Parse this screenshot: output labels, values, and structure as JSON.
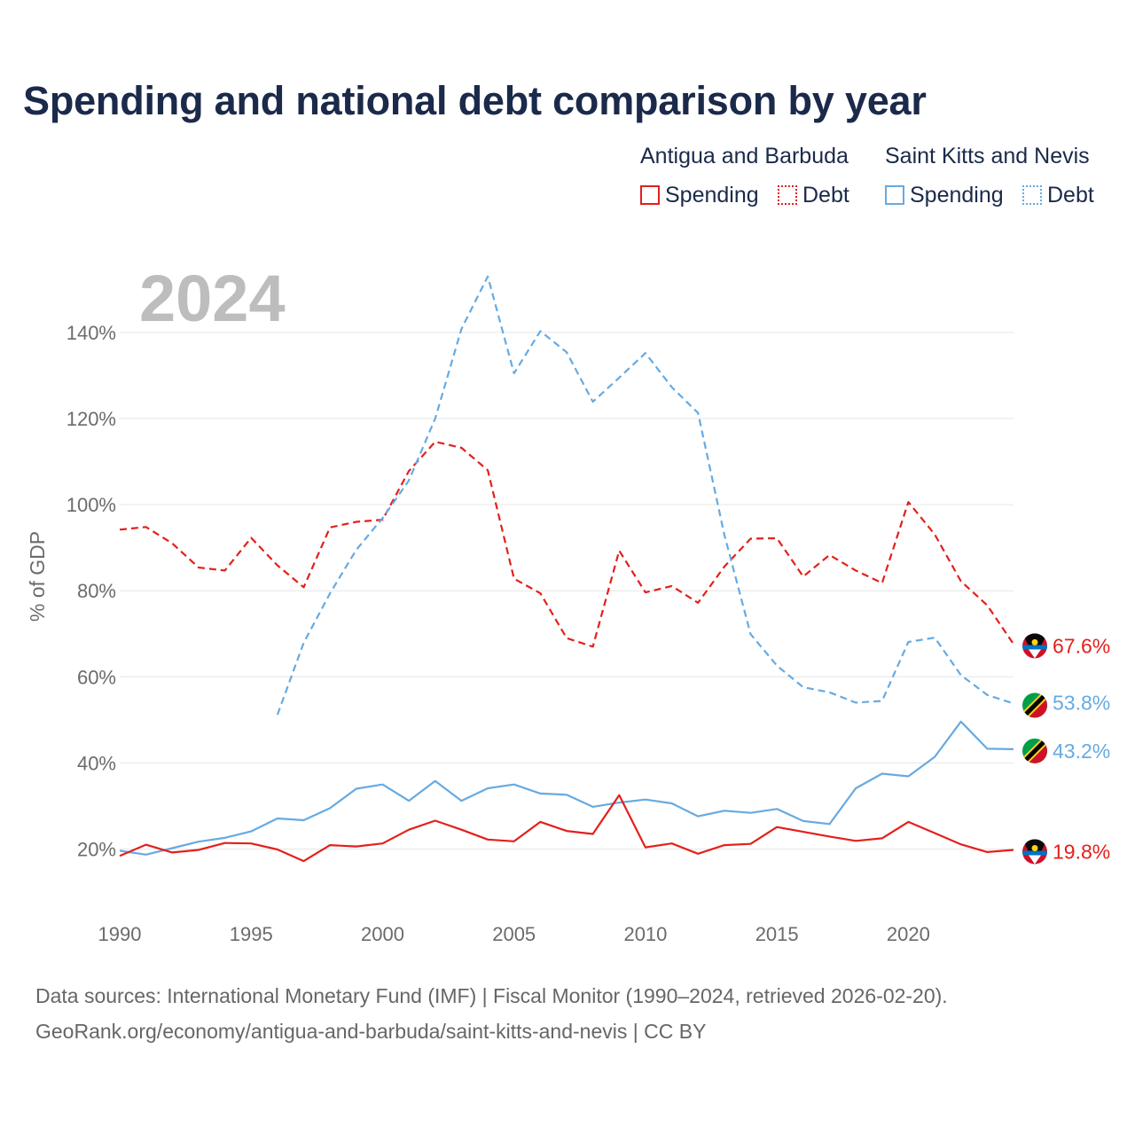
{
  "title": "Spending and national debt comparison by year",
  "legend": {
    "groups": [
      {
        "country": "Antigua and Barbuda",
        "spending_label": "Spending",
        "debt_label": "Debt",
        "color": "#e3201b"
      },
      {
        "country": "Saint Kitts and Nevis",
        "spending_label": "Spending",
        "debt_label": "Debt",
        "color": "#66aae2"
      }
    ]
  },
  "source": {
    "line1": "Data sources: International Monetary Fund (IMF) | Fiscal Monitor (1990–2024, retrieved 2026-02-20).",
    "line2": "GeoRank.org/economy/antigua-and-barbuda/saint-kitts-and-nevis | CC BY"
  },
  "chart_data": {
    "type": "line",
    "year_watermark": "2024",
    "ylabel": "% of GDP",
    "xlim": [
      1990,
      2024
    ],
    "ylim": [
      10,
      150
    ],
    "x_ticks": [
      1990,
      1995,
      2000,
      2005,
      2010,
      2015,
      2020
    ],
    "y_ticks": [
      20,
      40,
      60,
      80,
      100,
      120,
      140
    ],
    "y_tick_labels": [
      "20%",
      "40%",
      "60%",
      "80%",
      "100%",
      "120%",
      "140%"
    ],
    "series": [
      {
        "name": "Antigua and Barbuda Debt",
        "country": "Antigua and Barbuda",
        "kind": "debt",
        "color": "#e3201b",
        "style": "dashed",
        "end_label": "67.6%",
        "x": [
          1990,
          1991,
          1992,
          1993,
          1994,
          1995,
          1996,
          1997,
          1998,
          1999,
          2000,
          2001,
          2002,
          2003,
          2004,
          2005,
          2006,
          2007,
          2008,
          2009,
          2010,
          2011,
          2012,
          2013,
          2014,
          2015,
          2016,
          2017,
          2018,
          2019,
          2020,
          2021,
          2022,
          2023,
          2024
        ],
        "values": [
          94.2,
          94.8,
          91.0,
          85.4,
          84.7,
          92.3,
          85.9,
          80.8,
          94.7,
          96.0,
          96.5,
          107.8,
          114.6,
          113.2,
          108.0,
          82.8,
          79.4,
          69.0,
          67.0,
          89.3,
          79.6,
          81.1,
          77.2,
          85.6,
          92.1,
          92.2,
          83.3,
          88.3,
          84.7,
          81.8,
          100.6,
          93.1,
          82.2,
          76.6,
          67.6
        ]
      },
      {
        "name": "Saint Kitts and Nevis Debt",
        "country": "Saint Kitts and Nevis",
        "kind": "debt",
        "color": "#66aae2",
        "style": "dashed",
        "end_label": "53.8%",
        "x": [
          1996,
          1997,
          1998,
          1999,
          2000,
          2001,
          2002,
          2003,
          2004,
          2005,
          2006,
          2007,
          2008,
          2009,
          2010,
          2011,
          2012,
          2013,
          2014,
          2015,
          2016,
          2017,
          2018,
          2019,
          2020,
          2021,
          2022,
          2023,
          2024
        ],
        "values": [
          51.2,
          67.9,
          79.4,
          89.5,
          96.9,
          105.6,
          120.0,
          140.8,
          153.0,
          130.5,
          140.3,
          135.4,
          123.9,
          129.5,
          135.2,
          127.3,
          121.3,
          93.0,
          69.9,
          62.6,
          57.6,
          56.4,
          54.0,
          54.4,
          68.1,
          69.1,
          60.4,
          55.8,
          53.8
        ]
      },
      {
        "name": "Saint Kitts and Nevis Spending",
        "country": "Saint Kitts and Nevis",
        "kind": "spending",
        "color": "#66aae2",
        "style": "solid",
        "end_label": "43.2%",
        "x": [
          1990,
          1991,
          1992,
          1993,
          1994,
          1995,
          1996,
          1997,
          1998,
          1999,
          2000,
          2001,
          2002,
          2003,
          2004,
          2005,
          2006,
          2007,
          2008,
          2009,
          2010,
          2011,
          2012,
          2013,
          2014,
          2015,
          2016,
          2017,
          2018,
          2019,
          2020,
          2021,
          2022,
          2023,
          2024
        ],
        "values": [
          19.6,
          18.7,
          20.2,
          21.7,
          22.6,
          24.1,
          27.1,
          26.7,
          29.5,
          34.0,
          35.0,
          31.2,
          35.8,
          31.2,
          34.1,
          35.0,
          32.9,
          32.6,
          29.8,
          30.8,
          31.5,
          30.6,
          27.6,
          28.9,
          28.4,
          29.3,
          26.5,
          25.8,
          34.1,
          37.5,
          36.9,
          41.4,
          49.6,
          43.3,
          43.2
        ]
      },
      {
        "name": "Antigua and Barbuda Spending",
        "country": "Antigua and Barbuda",
        "kind": "spending",
        "color": "#e3201b",
        "style": "solid",
        "end_label": "19.8%",
        "x": [
          1990,
          1991,
          1992,
          1993,
          1994,
          1995,
          1996,
          1997,
          1998,
          1999,
          2000,
          2001,
          2002,
          2003,
          2004,
          2005,
          2006,
          2007,
          2008,
          2009,
          2010,
          2011,
          2012,
          2013,
          2014,
          2015,
          2016,
          2017,
          2018,
          2019,
          2020,
          2021,
          2022,
          2023,
          2024
        ],
        "values": [
          18.4,
          21.0,
          19.2,
          19.8,
          21.4,
          21.3,
          19.9,
          17.2,
          20.9,
          20.6,
          21.3,
          24.5,
          26.6,
          24.5,
          22.2,
          21.8,
          26.3,
          24.2,
          23.5,
          32.5,
          20.4,
          21.3,
          18.9,
          20.9,
          21.2,
          25.1,
          24.0,
          22.9,
          21.9,
          22.5,
          26.3,
          23.7,
          21.1,
          19.3,
          19.8
        ]
      }
    ]
  }
}
